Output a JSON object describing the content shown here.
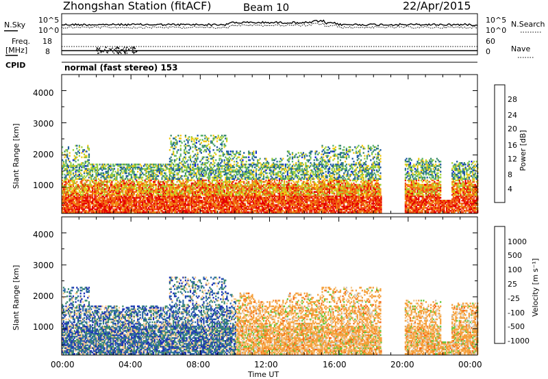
{
  "header": {
    "station": "Zhongshan Station (fitACF)",
    "beam": "Beam 10",
    "date": "22/Apr/2015"
  },
  "panels": {
    "nsky_label": "N.Sky",
    "nsky_ticks": [
      "10^5",
      "10^0"
    ],
    "nsearch_label": "N.Search",
    "nsearch_ticks": [
      "10^5",
      "10^0"
    ],
    "freq_label_1": "Freq.",
    "freq_label_2": "[MHz]",
    "freq_ticks": [
      "18",
      "8"
    ],
    "nave_label": "Nave",
    "nave_ticks": [
      "60",
      "0"
    ],
    "cpid_label": "CPID",
    "cpid_value": "normal (fast stereo) 153"
  },
  "chart_data": [
    {
      "type": "heatmap",
      "name": "power",
      "ylabel": "Slant Range [km]",
      "yticks": [
        "4000",
        "3000",
        "2000",
        "1000"
      ],
      "ylim": [
        180,
        4500
      ],
      "xlim": [
        0,
        24
      ],
      "colorbar_label": "Power [dB]",
      "colorbar_ticks": [
        "28",
        "24",
        "20",
        "16",
        "12",
        "8",
        "4"
      ],
      "colors": [
        "#0a14e6",
        "#1e5aa0",
        "#3c8c6e",
        "#5ab46e",
        "#a0d23c",
        "#f0c814",
        "#f08c14",
        "#f05014",
        "#e60000"
      ]
    },
    {
      "type": "heatmap",
      "name": "velocity",
      "ylabel": "Slant Range [km]",
      "yticks": [
        "4000",
        "3000",
        "2000",
        "1000"
      ],
      "ylim": [
        180,
        4500
      ],
      "xlim": [
        0,
        24
      ],
      "xlabel": "Time UT",
      "xticks": [
        "00:00",
        "04:00",
        "08:00",
        "12:00",
        "16:00",
        "20:00",
        "00:00"
      ],
      "colorbar_label": "Velocity [m s⁻¹]",
      "colorbar_ticks": [
        "1000",
        "500",
        "100",
        "25",
        "-25",
        "-100",
        "-500",
        "-1000"
      ],
      "colors": [
        "#1e32b4",
        "#2e6aa8",
        "#3c8c6e",
        "#64c83c",
        "#c8c8c8",
        "#f5c88c",
        "#f5a03c",
        "#f56414",
        "#e60000"
      ]
    }
  ]
}
